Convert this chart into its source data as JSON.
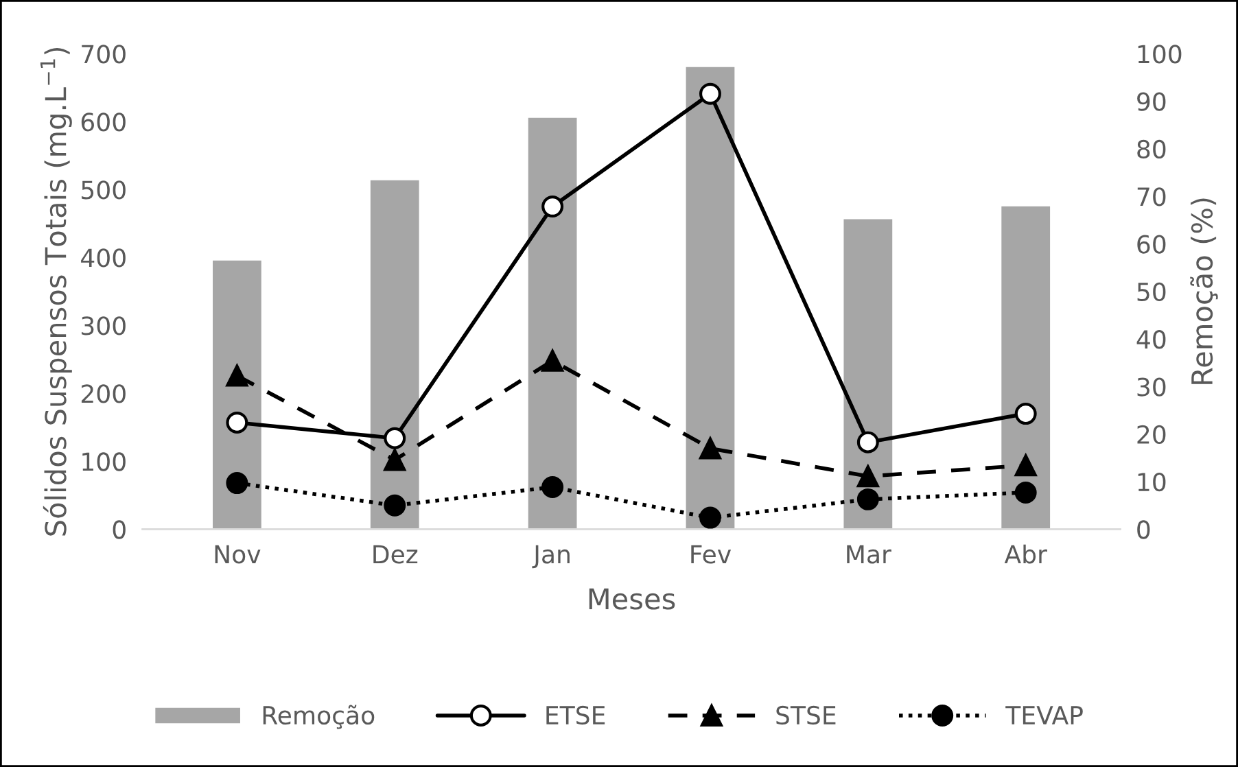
{
  "chart_data": {
    "type": "bar",
    "categories": [
      "Nov",
      "Dez",
      "Jan",
      "Fev",
      "Mar",
      "Abr"
    ],
    "xlabel": "Meses",
    "ylabel": "Sólidos Suspensos Totais (mg.L$^{−1}$)",
    "y2label": "Remoção (%)",
    "ylim": [
      0,
      700
    ],
    "yticks": [
      0,
      100,
      200,
      300,
      400,
      500,
      600,
      700
    ],
    "y2lim": [
      0,
      100
    ],
    "y2ticks": [
      0,
      10,
      20,
      30,
      40,
      50,
      60,
      70,
      80,
      90,
      100
    ],
    "grid": false,
    "legend": "bottom",
    "series": [
      {
        "name": "Remoção",
        "axis": "y2",
        "color": "#a6a6a6",
        "values": [
          56.7,
          73.6,
          86.7,
          97.4,
          65.4,
          68.1
        ]
      },
      {
        "name": "ETSE",
        "type": "line",
        "color": "#000000",
        "marker": "circle",
        "line_style": "solid",
        "values": [
          157,
          134,
          475,
          641,
          128,
          170
        ]
      },
      {
        "name": "STSE",
        "type": "line",
        "color": "#000000",
        "marker": "triangle",
        "line_style": "dashed",
        "values": [
          226,
          102,
          248,
          119,
          78,
          94
        ]
      },
      {
        "name": "TEVAP",
        "type": "line",
        "color": "#000000",
        "marker": "circle",
        "line_style": "dotted",
        "values": [
          68,
          35,
          62,
          17,
          44,
          54
        ]
      }
    ]
  }
}
